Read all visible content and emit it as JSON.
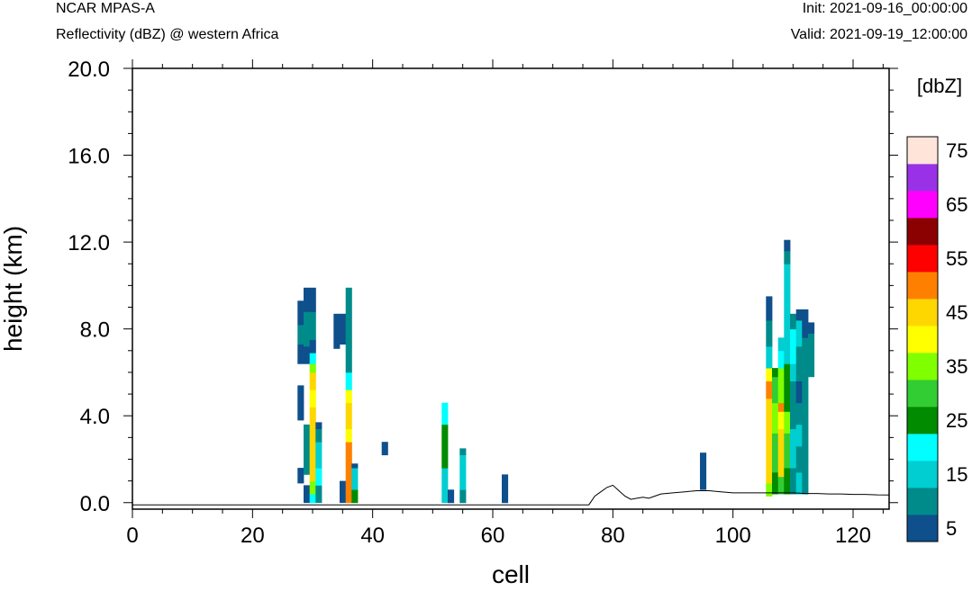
{
  "header": {
    "left_title": "NCAR MPAS-A",
    "left_subtitle": "Reflectivity (dBZ) @ western Africa",
    "right_title": "Init: 2021-09-16_00:00:00",
    "right_subtitle": "Valid: 2021-09-19_12:00:00"
  },
  "chart_data": {
    "type": "heatmap",
    "xlabel": "cell",
    "ylabel": "height (km)",
    "xlim": [
      0,
      126
    ],
    "ylim": [
      -0.3,
      20.0
    ],
    "x_ticks": [
      "0",
      "20",
      "40",
      "60",
      "80",
      "100",
      "120"
    ],
    "y_ticks": [
      "0.0",
      "4.0",
      "8.0",
      "12.0",
      "16.0",
      "20.0"
    ],
    "colorbar": {
      "title": "[dbZ]",
      "tick_labels": [
        "5",
        "15",
        "25",
        "35",
        "45",
        "55",
        "65",
        "75"
      ],
      "levels": [
        5,
        10,
        15,
        20,
        25,
        30,
        35,
        40,
        45,
        50,
        55,
        60,
        65,
        70,
        75
      ],
      "colors": [
        "#0e4f8c",
        "#008b8b",
        "#00ced1",
        "#00ffff",
        "#008b00",
        "#32cd32",
        "#7fff00",
        "#ffff00",
        "#ffd700",
        "#ff8000",
        "#ff0000",
        "#8b0000",
        "#ff00ff",
        "#9932e6",
        "#ffe4da"
      ]
    },
    "cells": [
      {
        "x": 28,
        "segs": [
          [
            0.9,
            1.6,
            5
          ],
          [
            3.8,
            4.6,
            5
          ],
          [
            4.6,
            5.4,
            5
          ],
          [
            6.4,
            7.3,
            5
          ],
          [
            7.3,
            8.2,
            10
          ],
          [
            8.2,
            9.3,
            5
          ]
        ]
      },
      {
        "x": 29,
        "segs": [
          [
            0.0,
            0.8,
            5
          ],
          [
            1.3,
            3.6,
            10
          ],
          [
            6.4,
            7.2,
            5
          ],
          [
            7.2,
            8.8,
            10
          ],
          [
            8.8,
            9.9,
            5
          ]
        ]
      },
      {
        "x": 30,
        "segs": [
          [
            0.0,
            0.4,
            20
          ],
          [
            0.4,
            1.0,
            35
          ],
          [
            1.0,
            4.4,
            45
          ],
          [
            4.4,
            5.2,
            40
          ],
          [
            5.2,
            6.0,
            45
          ],
          [
            6.0,
            6.4,
            35
          ],
          [
            6.4,
            6.9,
            20
          ],
          [
            6.9,
            7.5,
            5
          ],
          [
            7.5,
            8.8,
            10
          ],
          [
            8.8,
            9.9,
            5
          ]
        ]
      },
      {
        "x": 31,
        "segs": [
          [
            0.0,
            0.8,
            10
          ],
          [
            0.8,
            1.6,
            20
          ],
          [
            1.6,
            2.8,
            15
          ],
          [
            2.8,
            3.4,
            10
          ],
          [
            3.4,
            3.7,
            5
          ]
        ]
      },
      {
        "x": 34,
        "segs": [
          [
            7.1,
            8.7,
            5
          ]
        ]
      },
      {
        "x": 35,
        "segs": [
          [
            0.0,
            1.0,
            5
          ],
          [
            7.3,
            8.7,
            5
          ]
        ]
      },
      {
        "x": 36,
        "segs": [
          [
            0.0,
            2.8,
            50
          ],
          [
            2.8,
            3.4,
            40
          ],
          [
            3.4,
            4.6,
            45
          ],
          [
            4.6,
            5.2,
            40
          ],
          [
            5.2,
            6.0,
            20
          ],
          [
            6.0,
            7.0,
            10
          ],
          [
            7.0,
            9.9,
            10
          ]
        ]
      },
      {
        "x": 37,
        "segs": [
          [
            0.0,
            0.6,
            25
          ],
          [
            0.6,
            1.6,
            15
          ],
          [
            1.6,
            1.8,
            5
          ]
        ]
      },
      {
        "x": 42,
        "segs": [
          [
            2.2,
            2.8,
            5
          ]
        ]
      },
      {
        "x": 52,
        "segs": [
          [
            0.0,
            1.6,
            15
          ],
          [
            1.6,
            2.8,
            25
          ],
          [
            2.8,
            3.6,
            25
          ],
          [
            3.6,
            4.6,
            20
          ]
        ]
      },
      {
        "x": 53,
        "segs": [
          [
            0.0,
            0.6,
            5
          ]
        ]
      },
      {
        "x": 55,
        "segs": [
          [
            0.0,
            0.6,
            10
          ],
          [
            0.6,
            2.2,
            15
          ],
          [
            2.2,
            2.5,
            10
          ]
        ]
      },
      {
        "x": 62,
        "segs": [
          [
            0.0,
            1.3,
            5
          ]
        ]
      },
      {
        "x": 95,
        "segs": [
          [
            0.6,
            2.3,
            5
          ]
        ]
      },
      {
        "x": 106,
        "segs": [
          [
            0.3,
            0.9,
            35
          ],
          [
            0.9,
            3.6,
            45
          ],
          [
            3.6,
            4.8,
            45
          ],
          [
            4.8,
            5.6,
            50
          ],
          [
            5.6,
            6.2,
            40
          ],
          [
            6.2,
            7.2,
            15
          ],
          [
            7.2,
            8.4,
            10
          ],
          [
            8.4,
            9.5,
            5
          ]
        ]
      },
      {
        "x": 107,
        "segs": [
          [
            0.4,
            1.4,
            25
          ],
          [
            1.4,
            3.2,
            30
          ],
          [
            3.2,
            4.6,
            35
          ],
          [
            4.6,
            5.8,
            30
          ],
          [
            5.8,
            6.2,
            25
          ]
        ]
      },
      {
        "x": 108,
        "segs": [
          [
            0.4,
            1.2,
            30
          ],
          [
            1.2,
            3.4,
            45
          ],
          [
            3.4,
            4.2,
            40
          ],
          [
            4.2,
            4.6,
            50
          ],
          [
            4.6,
            6.2,
            35
          ],
          [
            6.2,
            7.0,
            20
          ],
          [
            7.0,
            7.6,
            15
          ]
        ]
      },
      {
        "x": 109,
        "segs": [
          [
            0.4,
            1.6,
            25
          ],
          [
            1.6,
            3.2,
            30
          ],
          [
            3.2,
            4.2,
            35
          ],
          [
            4.2,
            4.8,
            25
          ],
          [
            4.8,
            6.4,
            25
          ],
          [
            6.4,
            7.2,
            15
          ],
          [
            7.2,
            9.4,
            15
          ],
          [
            9.4,
            11.0,
            15
          ],
          [
            11.0,
            11.6,
            10
          ],
          [
            11.6,
            12.1,
            5
          ]
        ]
      },
      {
        "x": 110,
        "segs": [
          [
            0.4,
            1.6,
            10
          ],
          [
            1.6,
            3.4,
            15
          ],
          [
            3.4,
            4.2,
            10
          ],
          [
            4.2,
            5.6,
            10
          ],
          [
            5.6,
            6.4,
            15
          ],
          [
            6.4,
            8.0,
            20
          ],
          [
            8.0,
            8.7,
            10
          ]
        ]
      },
      {
        "x": 111,
        "segs": [
          [
            0.4,
            1.4,
            15
          ],
          [
            1.4,
            2.6,
            10
          ],
          [
            2.6,
            3.6,
            15
          ],
          [
            3.6,
            4.6,
            10
          ],
          [
            4.6,
            5.6,
            5
          ],
          [
            5.6,
            6.2,
            10
          ],
          [
            6.2,
            7.2,
            10
          ],
          [
            7.2,
            8.4,
            15
          ],
          [
            8.4,
            8.9,
            5
          ]
        ]
      },
      {
        "x": 112,
        "segs": [
          [
            0.4,
            1.4,
            10
          ],
          [
            1.4,
            3.4,
            10
          ],
          [
            3.4,
            4.6,
            10
          ],
          [
            4.6,
            6.2,
            10
          ],
          [
            6.2,
            7.6,
            10
          ],
          [
            7.6,
            8.3,
            5
          ],
          [
            8.3,
            8.9,
            5
          ]
        ]
      },
      {
        "x": 113,
        "segs": [
          [
            5.8,
            7.8,
            10
          ],
          [
            7.8,
            8.3,
            5
          ]
        ]
      }
    ],
    "terrain_km": [
      [
        0,
        -0.1
      ],
      [
        76,
        -0.1
      ],
      [
        77,
        0.3
      ],
      [
        78,
        0.5
      ],
      [
        79,
        0.7
      ],
      [
        80,
        0.8
      ],
      [
        81,
        0.55
      ],
      [
        82,
        0.3
      ],
      [
        83,
        0.15
      ],
      [
        84,
        0.2
      ],
      [
        85,
        0.25
      ],
      [
        86,
        0.2
      ],
      [
        87,
        0.3
      ],
      [
        88,
        0.4
      ],
      [
        90,
        0.45
      ],
      [
        92,
        0.5
      ],
      [
        94,
        0.55
      ],
      [
        96,
        0.55
      ],
      [
        98,
        0.5
      ],
      [
        100,
        0.45
      ],
      [
        102,
        0.45
      ],
      [
        104,
        0.45
      ],
      [
        106,
        0.45
      ],
      [
        108,
        0.45
      ],
      [
        110,
        0.45
      ],
      [
        112,
        0.42
      ],
      [
        114,
        0.42
      ],
      [
        116,
        0.4
      ],
      [
        118,
        0.4
      ],
      [
        120,
        0.38
      ],
      [
        122,
        0.38
      ],
      [
        124,
        0.36
      ],
      [
        126,
        0.35
      ]
    ]
  }
}
